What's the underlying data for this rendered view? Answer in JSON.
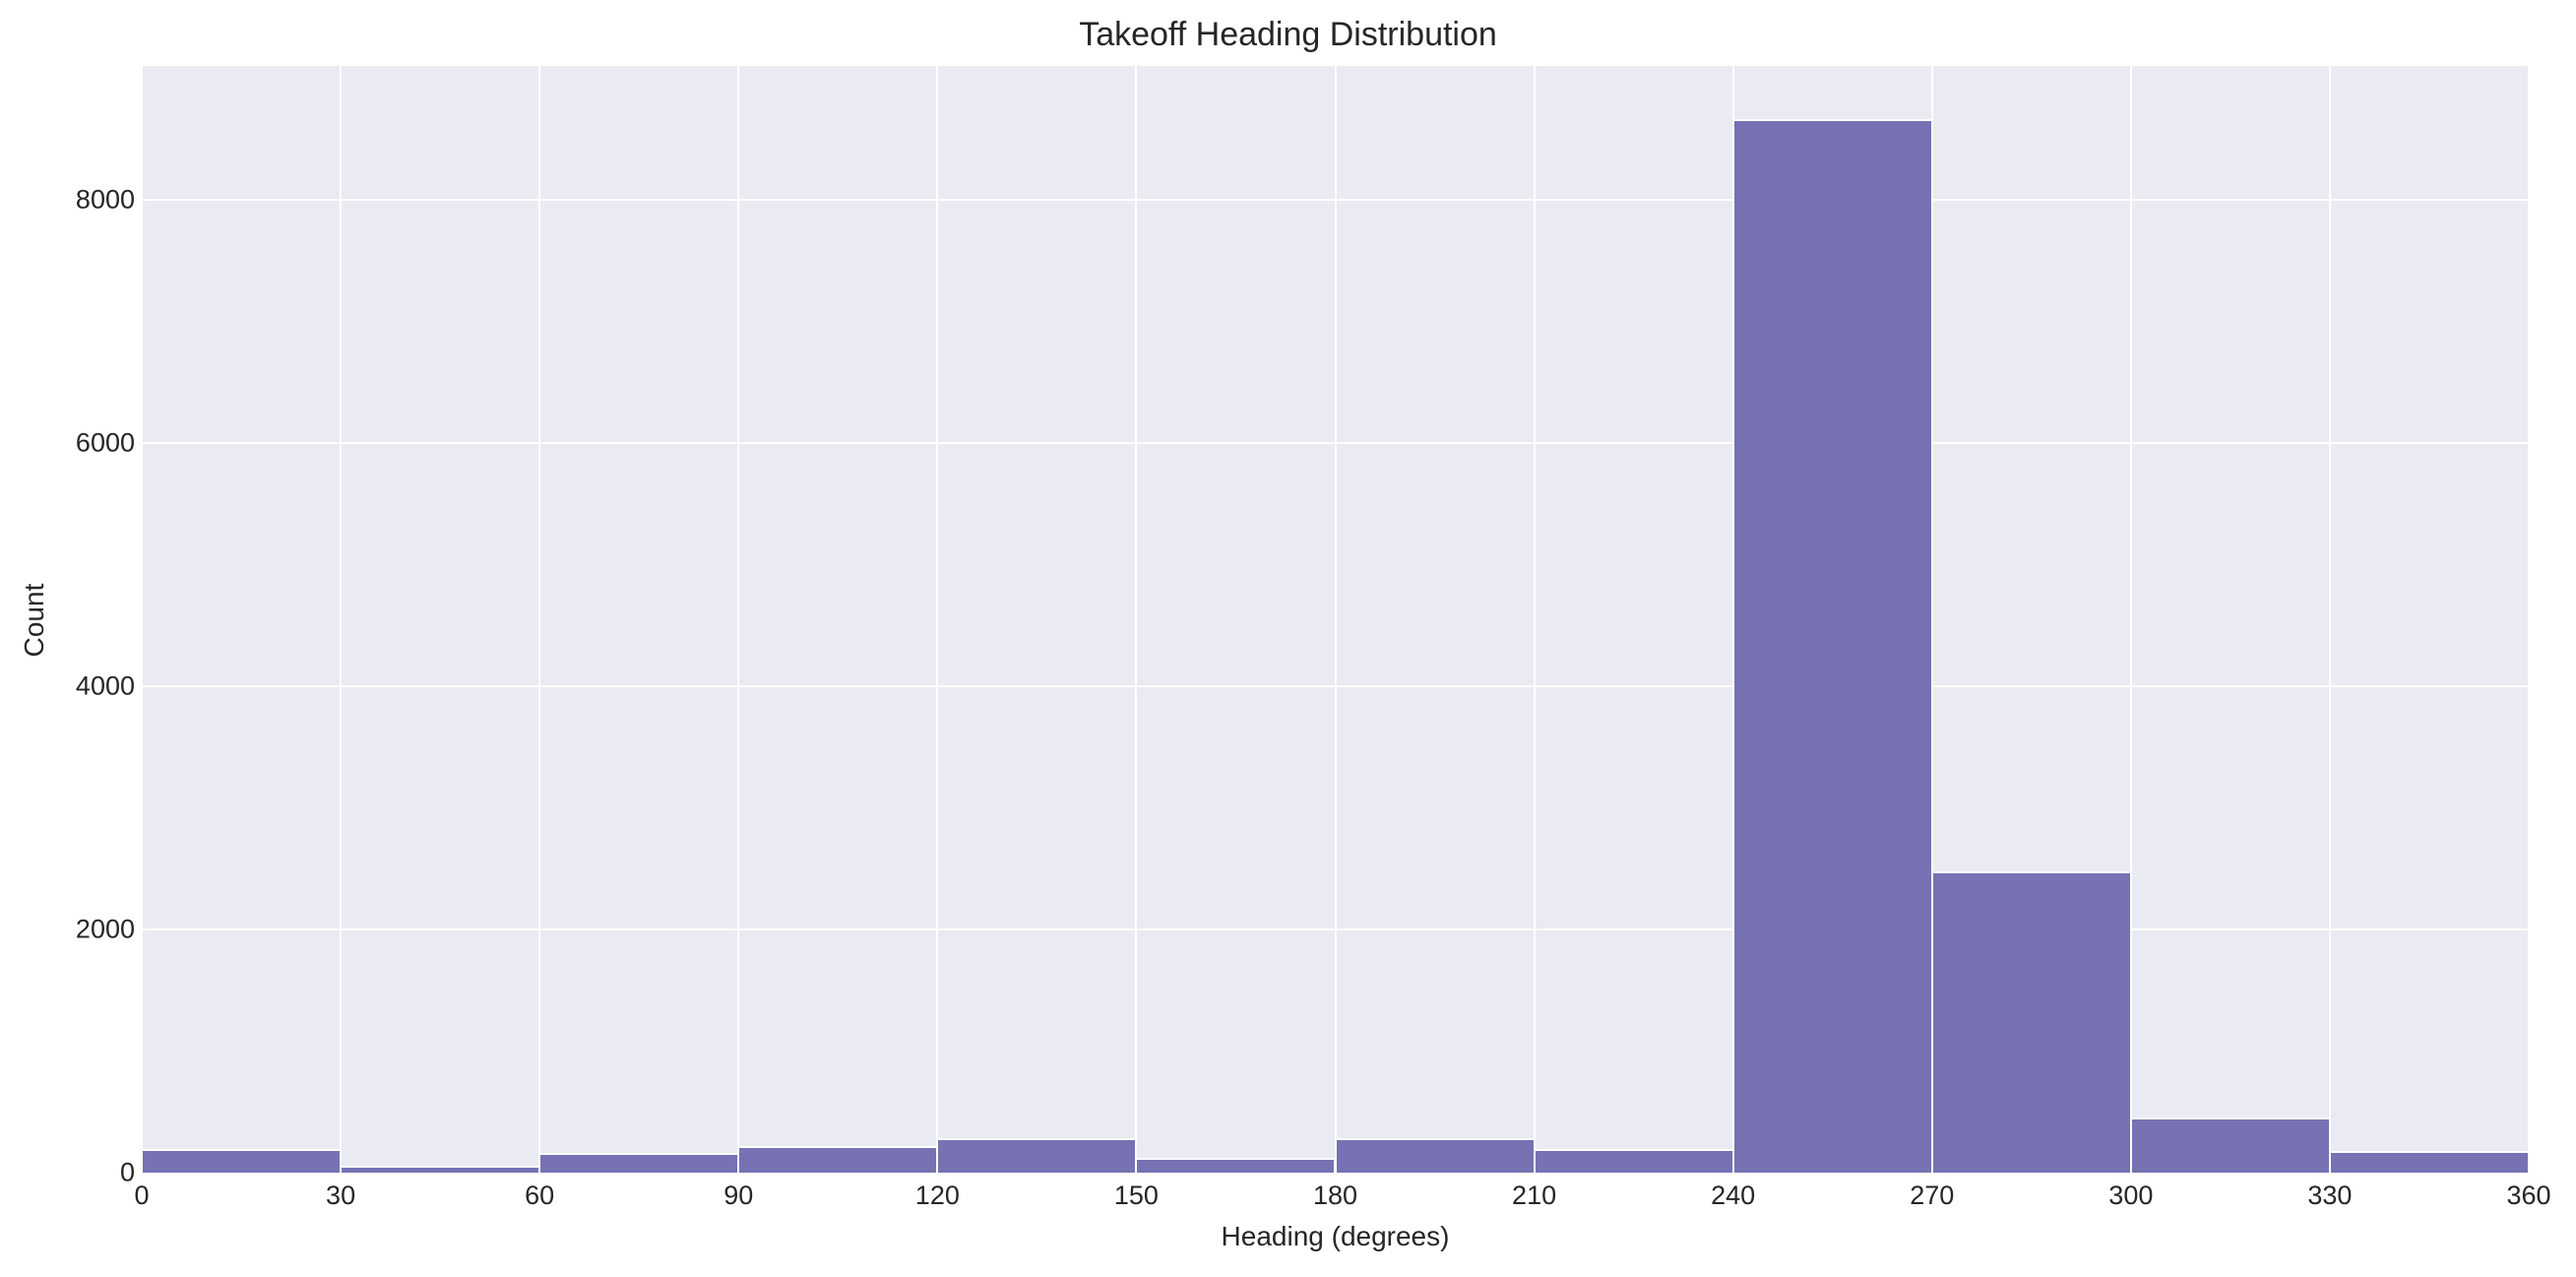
{
  "chart_data": {
    "type": "bar",
    "title": "Takeoff Heading Distribution",
    "xlabel": "Heading (degrees)",
    "ylabel": "Count",
    "bin_edges": [
      0,
      30,
      60,
      90,
      120,
      150,
      180,
      210,
      240,
      270,
      300,
      330,
      360
    ],
    "categories": [
      "0-30",
      "30-60",
      "60-90",
      "90-120",
      "120-150",
      "150-180",
      "180-210",
      "210-240",
      "240-270",
      "270-300",
      "300-330",
      "330-360"
    ],
    "values": [
      195,
      60,
      165,
      215,
      280,
      125,
      285,
      195,
      8660,
      2480,
      455,
      175
    ],
    "xlim": [
      0,
      360
    ],
    "ylim": [
      0,
      9100
    ],
    "xticks": [
      "0",
      "30",
      "60",
      "90",
      "120",
      "150",
      "180",
      "210",
      "240",
      "270",
      "300",
      "330",
      "360"
    ],
    "yticks": [
      "0",
      "2000",
      "4000",
      "6000",
      "8000"
    ],
    "ytick_values": [
      0,
      2000,
      4000,
      6000,
      8000
    ],
    "grid": true,
    "legend": null,
    "colors": {
      "bar": "#7672b3",
      "background": "#eaeaf2",
      "grid": "#ffffff"
    }
  }
}
